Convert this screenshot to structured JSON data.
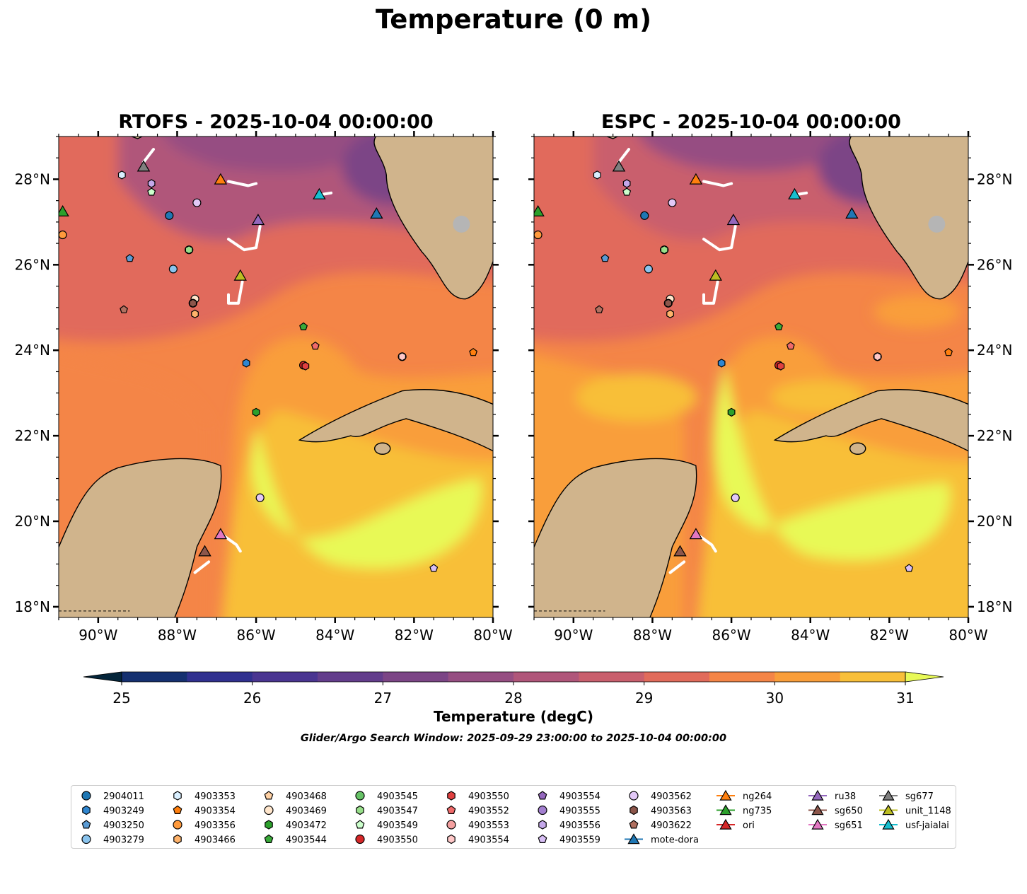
{
  "title": "Temperature (0 m)",
  "panels": [
    {
      "title": "RTOFS - 2025-10-04 00:00:00",
      "variant": "rtofs"
    },
    {
      "title": "ESPC - 2025-10-04 00:00:00",
      "variant": "espc"
    }
  ],
  "axes": {
    "lon_ticks": [
      "90°W",
      "88°W",
      "86°W",
      "84°W",
      "82°W",
      "80°W"
    ],
    "lat_ticks": [
      "28°N",
      "26°N",
      "24°N",
      "22°N",
      "20°N",
      "18°N"
    ]
  },
  "colorbar": {
    "label": "Temperature (degC)",
    "ticks": [
      "25",
      "26",
      "27",
      "28",
      "29",
      "30",
      "31"
    ],
    "colors": [
      "#04253a",
      "#153070",
      "#30308f",
      "#4a3591",
      "#633d8c",
      "#7c4586",
      "#964e82",
      "#b0567a",
      "#c95f6d",
      "#e16b5b",
      "#f48547",
      "#f99e3a",
      "#f8bf39",
      "#e8f957"
    ]
  },
  "search_window": "Glider/Argo Search Window: 2025-09-29 23:00:00 to 2025-10-04 00:00:00",
  "map_data": {
    "lon_range": [
      -91.0,
      -80.0
    ],
    "lat_range": [
      17.75,
      29.0
    ],
    "stations": [
      {
        "id": "2904011",
        "lon": -88.2,
        "lat": 27.15,
        "type": "circle",
        "color": "#1f77b4"
      },
      {
        "id": "4903249",
        "lon": -86.25,
        "lat": 23.7,
        "type": "hexagon",
        "color": "#2f86d0"
      },
      {
        "id": "4903250",
        "lon": -89.2,
        "lat": 26.15,
        "type": "pentagon",
        "color": "#5a9bd4"
      },
      {
        "id": "4903279",
        "lon": -88.1,
        "lat": 25.9,
        "type": "circle",
        "color": "#8ac4ee"
      },
      {
        "id": "4903353",
        "lon": -89.4,
        "lat": 28.1,
        "type": "hexagon",
        "color": "#d9efff"
      },
      {
        "id": "4903354",
        "lon": -80.5,
        "lat": 23.95,
        "type": "pentagon",
        "color": "#ff7f0e"
      },
      {
        "id": "4903356",
        "lon": -90.9,
        "lat": 26.7,
        "type": "circle",
        "color": "#ff9a3c"
      },
      {
        "id": "4903466",
        "lon": -87.55,
        "lat": 24.85,
        "type": "hexagon",
        "color": "#ffb36b"
      },
      {
        "id": "4903468",
        "lon": -87.55,
        "lat": 25.2,
        "type": "pentagon",
        "color": "#ffd1a4"
      },
      {
        "id": "4903469",
        "lon": -87.55,
        "lat": 25.2,
        "type": "circle",
        "color": "#ffe6cc"
      },
      {
        "id": "4903472",
        "lon": -86.0,
        "lat": 22.55,
        "type": "hexagon",
        "color": "#2ca02c"
      },
      {
        "id": "4903544",
        "lon": -84.8,
        "lat": 24.55,
        "type": "pentagon",
        "color": "#3aaa3a"
      },
      {
        "id": "4903545",
        "lon": -87.7,
        "lat": 26.35,
        "type": "circle",
        "color": "#66c266"
      },
      {
        "id": "4903547",
        "lon": -87.7,
        "lat": 26.35,
        "type": "hexagon",
        "color": "#98df8a"
      },
      {
        "id": "4903549",
        "lon": -88.65,
        "lat": 27.7,
        "type": "pentagon",
        "color": "#ccffcc"
      },
      {
        "id": "4903550",
        "lon": -84.8,
        "lat": 23.65,
        "type": "circle",
        "color": "#d62728"
      },
      {
        "id": "4903550",
        "lon": -84.75,
        "lat": 23.63,
        "type": "hexagon",
        "color": "#e04040"
      },
      {
        "id": "4903552",
        "lon": -84.5,
        "lat": 24.1,
        "type": "pentagon",
        "color": "#f06a6a"
      },
      {
        "id": "4903553",
        "lon": -82.3,
        "lat": 23.85,
        "type": "circle",
        "color": "#f4a0a0"
      },
      {
        "id": "4903554",
        "lon": -82.3,
        "lat": 23.85,
        "type": "hexagon",
        "color": "#ffc8c8"
      },
      {
        "id": "4903554",
        "lon": -87.6,
        "lat": 25.1,
        "type": "pentagon",
        "color": "#9467bd"
      },
      {
        "id": "4903555",
        "lon": -87.6,
        "lat": 25.1,
        "type": "circle",
        "color": "#a37fd0"
      },
      {
        "id": "4903556",
        "lon": -88.65,
        "lat": 27.9,
        "type": "hexagon",
        "color": "#c5a8ea"
      },
      {
        "id": "4903559",
        "lon": -81.5,
        "lat": 18.9,
        "type": "pentagon",
        "color": "#d8bff5"
      },
      {
        "id": "4903562",
        "lon": -87.5,
        "lat": 27.45,
        "type": "circle",
        "color": "#e2c8f7"
      },
      {
        "id": "4903562",
        "lon": -85.9,
        "lat": 20.55,
        "type": "circle",
        "color": "#e2c8f7"
      },
      {
        "id": "4903563",
        "lon": -87.6,
        "lat": 25.1,
        "type": "hexagon",
        "color": "#8c564b"
      },
      {
        "id": "4903622",
        "lon": -89.35,
        "lat": 24.95,
        "type": "pentagon",
        "color": "#b07060"
      },
      {
        "id": "mote-dora",
        "lon": -82.95,
        "lat": 27.2,
        "type": "triangle",
        "color": "#1f77b4"
      },
      {
        "id": "ng264",
        "lon": -86.9,
        "lat": 28.0,
        "type": "triangle",
        "color": "#ff7f0e"
      },
      {
        "id": "ng735",
        "lon": -90.9,
        "lat": 27.25,
        "type": "triangle",
        "color": "#2ca02c"
      },
      {
        "id": "ru38",
        "lon": -85.95,
        "lat": 27.05,
        "type": "triangle",
        "color": "#9467bd"
      },
      {
        "id": "sg650",
        "lon": -87.3,
        "lat": 19.3,
        "type": "triangle",
        "color": "#8c564b"
      },
      {
        "id": "sg651",
        "lon": -86.9,
        "lat": 19.7,
        "type": "triangle",
        "color": "#e377c2"
      },
      {
        "id": "sg677",
        "lon": -88.85,
        "lat": 28.3,
        "type": "triangle",
        "color": "#7f7f7f"
      },
      {
        "id": "unit_1148",
        "lon": -86.4,
        "lat": 25.75,
        "type": "triangle",
        "color": "#bcbd22"
      },
      {
        "id": "usf-jaialai",
        "lon": -84.4,
        "lat": 27.65,
        "type": "triangle",
        "color": "#17becf"
      }
    ],
    "tracks": [
      [
        [
          -88.85,
          28.4
        ],
        [
          -88.6,
          28.7
        ]
      ],
      [
        [
          -86.7,
          27.95
        ],
        [
          -86.2,
          27.85
        ],
        [
          -86.0,
          27.9
        ]
      ],
      [
        [
          -84.3,
          27.65
        ],
        [
          -84.1,
          27.68
        ]
      ],
      [
        [
          -86.7,
          26.6
        ],
        [
          -86.3,
          26.35
        ],
        [
          -86.0,
          26.4
        ],
        [
          -85.9,
          26.9
        ]
      ],
      [
        [
          -86.7,
          25.3
        ],
        [
          -86.7,
          25.1
        ],
        [
          -86.45,
          25.1
        ],
        [
          -86.35,
          25.6
        ]
      ],
      [
        [
          -86.8,
          19.65
        ],
        [
          -86.5,
          19.45
        ],
        [
          -86.4,
          19.3
        ]
      ],
      [
        [
          -87.55,
          18.8
        ],
        [
          -87.2,
          19.05
        ]
      ]
    ]
  },
  "legend": {
    "columns": [
      [
        {
          "label": "2904011",
          "type": "circle",
          "color": "#1f77b4"
        },
        {
          "label": "4903249",
          "type": "hexagon",
          "color": "#2f86d0"
        },
        {
          "label": "4903250",
          "type": "pentagon",
          "color": "#5a9bd4"
        },
        {
          "label": "4903279",
          "type": "circle",
          "color": "#8ac4ee"
        }
      ],
      [
        {
          "label": "4903353",
          "type": "hexagon",
          "color": "#d9efff"
        },
        {
          "label": "4903354",
          "type": "pentagon",
          "color": "#ff7f0e"
        },
        {
          "label": "4903356",
          "type": "circle",
          "color": "#ff9a3c"
        },
        {
          "label": "4903466",
          "type": "hexagon",
          "color": "#ffb36b"
        }
      ],
      [
        {
          "label": "4903468",
          "type": "pentagon",
          "color": "#ffd1a4"
        },
        {
          "label": "4903469",
          "type": "circle",
          "color": "#ffe6cc"
        },
        {
          "label": "4903472",
          "type": "hexagon",
          "color": "#2ca02c"
        },
        {
          "label": "4903544",
          "type": "pentagon",
          "color": "#3aaa3a"
        }
      ],
      [
        {
          "label": "4903545",
          "type": "circle",
          "color": "#66c266"
        },
        {
          "label": "4903547",
          "type": "hexagon",
          "color": "#98df8a"
        },
        {
          "label": "4903549",
          "type": "pentagon",
          "color": "#ccffcc"
        },
        {
          "label": "4903550",
          "type": "circle",
          "color": "#d62728"
        }
      ],
      [
        {
          "label": "4903550",
          "type": "hexagon",
          "color": "#e04040"
        },
        {
          "label": "4903552",
          "type": "pentagon",
          "color": "#f06a6a"
        },
        {
          "label": "4903553",
          "type": "circle",
          "color": "#f4a0a0"
        },
        {
          "label": "4903554",
          "type": "hexagon",
          "color": "#ffc8c8"
        }
      ],
      [
        {
          "label": "4903554",
          "type": "pentagon",
          "color": "#9467bd"
        },
        {
          "label": "4903555",
          "type": "circle",
          "color": "#a37fd0"
        },
        {
          "label": "4903556",
          "type": "hexagon",
          "color": "#c5a8ea"
        },
        {
          "label": "4903559",
          "type": "pentagon",
          "color": "#d8bff5"
        }
      ],
      [
        {
          "label": "4903562",
          "type": "circle",
          "color": "#e2c8f7"
        },
        {
          "label": "4903563",
          "type": "hexagon",
          "color": "#8c564b"
        },
        {
          "label": "4903622",
          "type": "pentagon",
          "color": "#b07060"
        },
        {
          "label": "mote-dora",
          "type": "line-triangle",
          "color": "#1f77b4"
        }
      ],
      [
        {
          "label": "ng264",
          "type": "line-triangle",
          "color": "#ff7f0e"
        },
        {
          "label": "ng735",
          "type": "line-triangle",
          "color": "#2ca02c"
        },
        {
          "label": "ori",
          "type": "line-triangle",
          "color": "#d62728"
        }
      ],
      [
        {
          "label": "ru38",
          "type": "line-triangle",
          "color": "#9467bd"
        },
        {
          "label": "sg650",
          "type": "line-triangle",
          "color": "#8c564b"
        },
        {
          "label": "sg651",
          "type": "line-triangle",
          "color": "#e377c2"
        }
      ],
      [
        {
          "label": "sg677",
          "type": "line-triangle",
          "color": "#7f7f7f"
        },
        {
          "label": "unit_1148",
          "type": "line-triangle",
          "color": "#bcbd22"
        },
        {
          "label": "usf-jaialai",
          "type": "line-triangle",
          "color": "#17becf"
        }
      ]
    ]
  }
}
